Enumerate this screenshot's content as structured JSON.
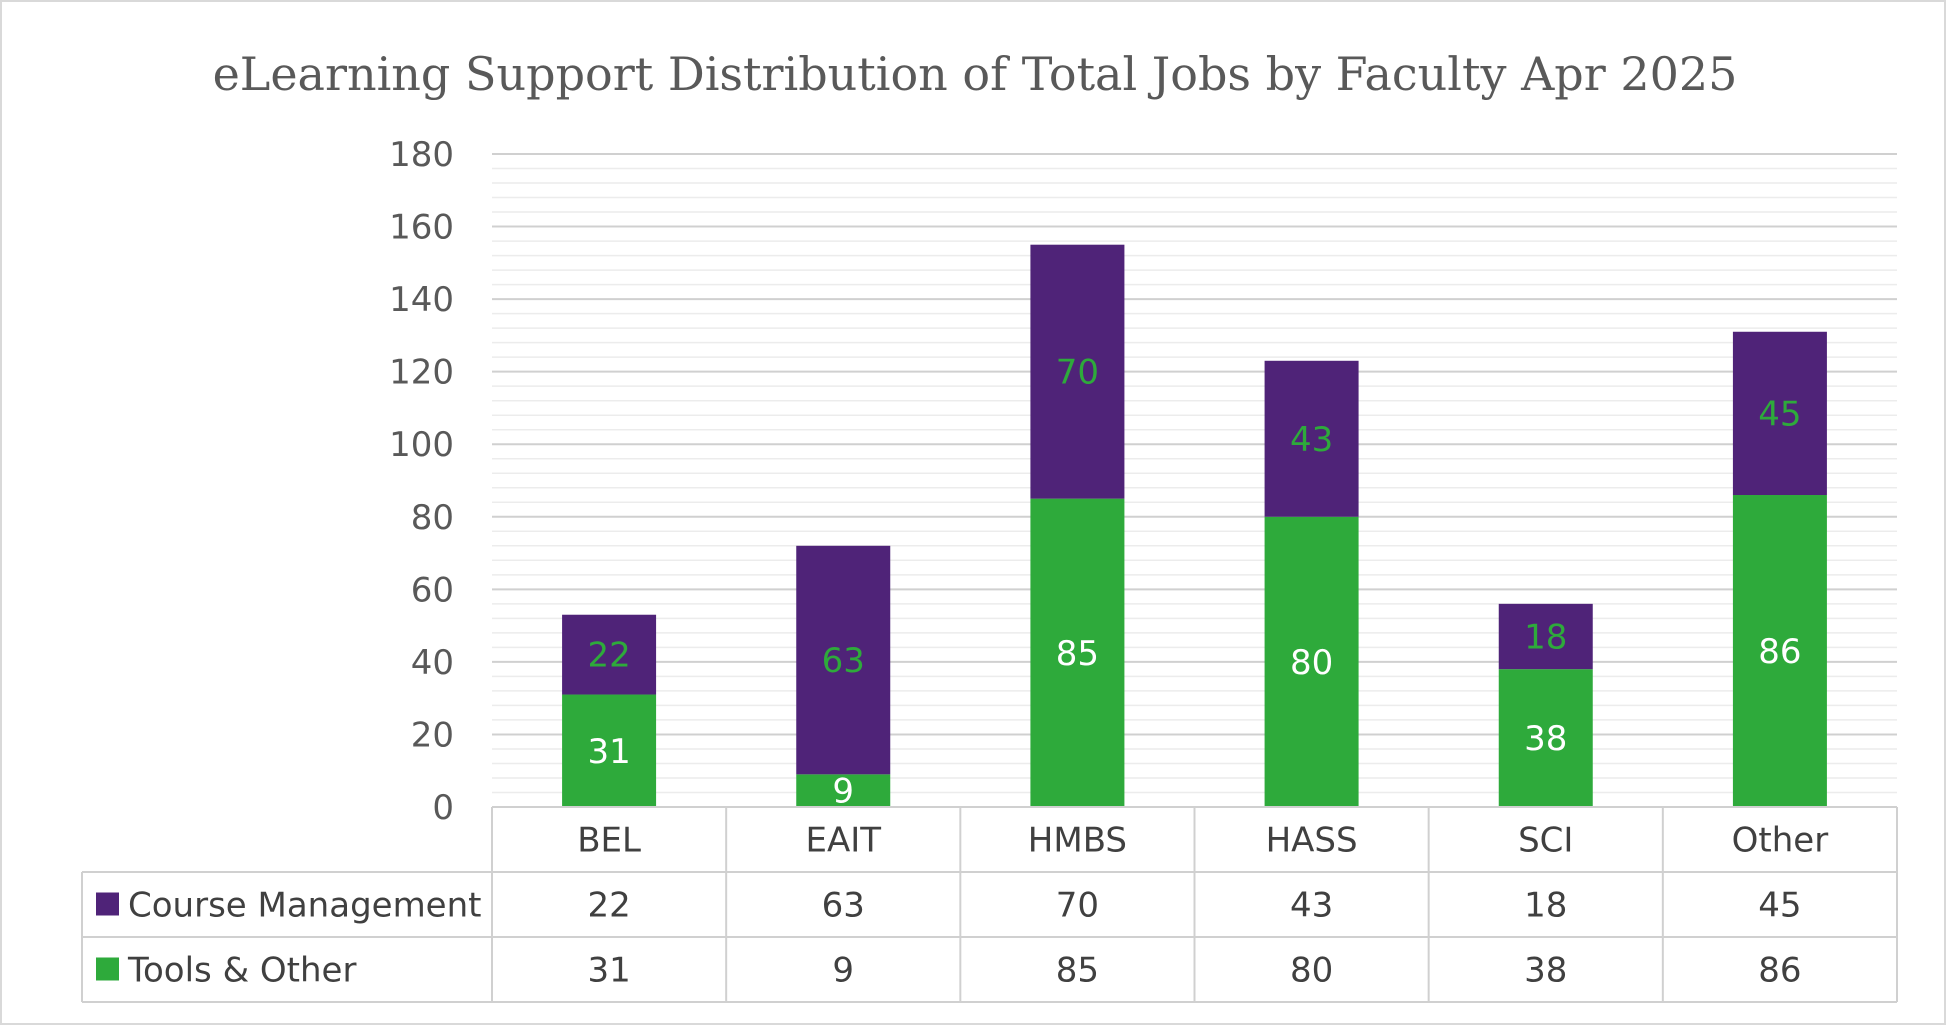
{
  "chart_data": {
    "type": "bar",
    "stacked": true,
    "title": "eLearning Support Distribution of Total Jobs by Faculty Apr 2025",
    "categories": [
      "BEL",
      "EAIT",
      "HMBS",
      "HASS",
      "SCI",
      "Other"
    ],
    "series": [
      {
        "name": "Tools & Other",
        "values": [
          31,
          9,
          85,
          80,
          38,
          86
        ],
        "color": "#2eaa3b",
        "label_color": "#ffffff"
      },
      {
        "name": "Course Management",
        "values": [
          22,
          63,
          70,
          43,
          18,
          45
        ],
        "color": "#4f2378",
        "label_color": "#2eaa3b"
      }
    ],
    "ylim": [
      0,
      180
    ],
    "y_ticks": [
      0,
      20,
      40,
      60,
      80,
      100,
      120,
      140,
      160,
      180
    ],
    "grid": true,
    "minor_grid": true,
    "legend_placement": "data-table",
    "data_table": true,
    "colors": {
      "major_grid": "#d0d0d0",
      "minor_grid": "#ececec",
      "table_border": "#d0d0d0",
      "tick_text": "#595959",
      "title_text": "#595959"
    }
  }
}
